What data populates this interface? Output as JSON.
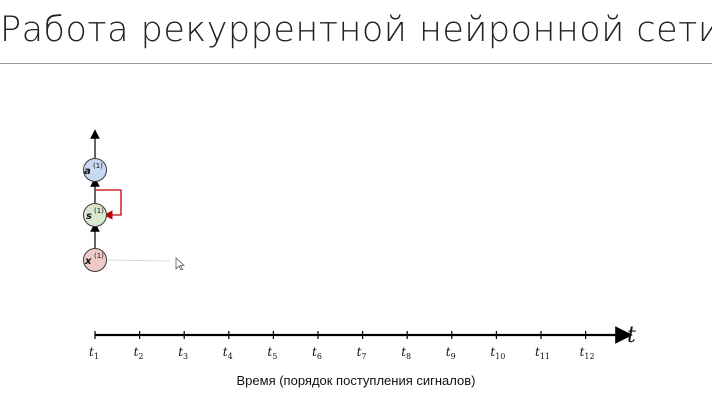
{
  "title": "Работа рекуррентной нейронной сети",
  "caption": "Время (порядок поступления сигналов)",
  "axis": {
    "symbol": "t",
    "ticks": [
      {
        "base": "t",
        "sub": "1"
      },
      {
        "base": "t",
        "sub": "2"
      },
      {
        "base": "t",
        "sub": "3"
      },
      {
        "base": "t",
        "sub": "4"
      },
      {
        "base": "t",
        "sub": "5"
      },
      {
        "base": "t",
        "sub": "6"
      },
      {
        "base": "t",
        "sub": "7"
      },
      {
        "base": "t",
        "sub": "8"
      },
      {
        "base": "t",
        "sub": "9"
      },
      {
        "base": "t",
        "sub": "10"
      },
      {
        "base": "t",
        "sub": "11"
      },
      {
        "base": "t",
        "sub": "12"
      }
    ]
  },
  "nodes": [
    {
      "id": "output",
      "label": "a",
      "sup": "(1)",
      "fill": "#c6d9f1",
      "stroke": "#3a3a3a"
    },
    {
      "id": "state",
      "label": "s",
      "sup": "(1)",
      "fill": "#d7e8cf",
      "stroke": "#3a3a3a"
    },
    {
      "id": "input",
      "label": "x",
      "sup": "(1)",
      "fill": "#f1c9c9",
      "stroke": "#3a3a3a"
    }
  ],
  "colors": {
    "recurrent_loop": "#c00000",
    "axis": "#000000"
  }
}
